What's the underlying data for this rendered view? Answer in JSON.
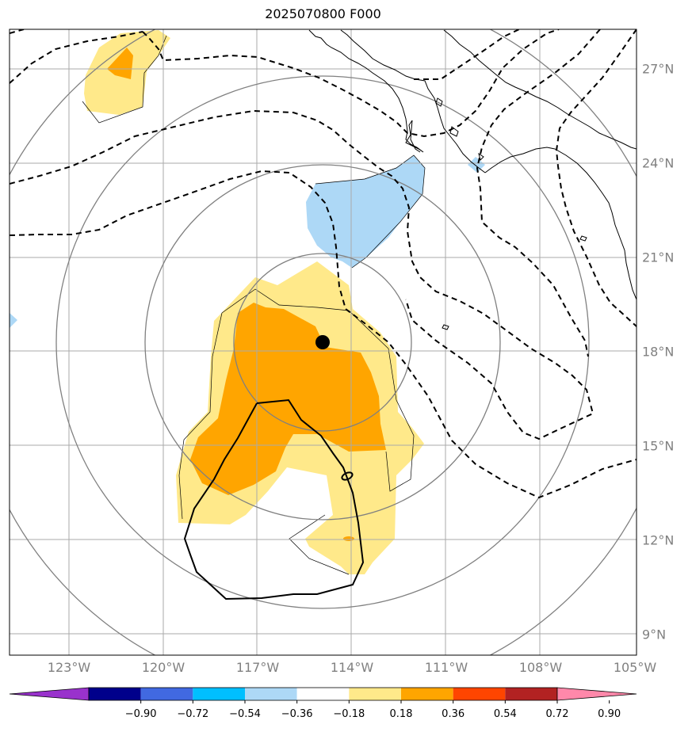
{
  "title": "2025070800 F000",
  "map": {
    "center_marker": {
      "lon": -114.9,
      "lat": 18.3
    },
    "lon_ticks": [
      {
        "value": -123,
        "label": "123°W"
      },
      {
        "value": -120,
        "label": "120°W"
      },
      {
        "value": -117,
        "label": "117°W"
      },
      {
        "value": -114,
        "label": "114°W"
      },
      {
        "value": -111,
        "label": "111°W"
      },
      {
        "value": -108,
        "label": "108°W"
      },
      {
        "value": -105,
        "label": "105°W"
      }
    ],
    "lat_ticks": [
      {
        "value": 27,
        "label": "27°N"
      },
      {
        "value": 24,
        "label": "24°N"
      },
      {
        "value": 21,
        "label": "21°N"
      },
      {
        "value": 18,
        "label": "18°N"
      },
      {
        "value": 15,
        "label": "15°N"
      },
      {
        "value": 12,
        "label": "12°N"
      },
      {
        "value": 9,
        "label": "9°N"
      }
    ],
    "gridline_color": "#aaaaaa",
    "range_ring_color": "#808080"
  },
  "colorbar": {
    "ticks": [
      "−0.90",
      "−0.72",
      "−0.54",
      "−0.36",
      "−0.18",
      "0.18",
      "0.36",
      "0.54",
      "0.72",
      "0.90"
    ],
    "colors": [
      "#9932cc",
      "#00008b",
      "#4169e1",
      "#00bfff",
      "#add8f6",
      "#ffffff",
      "#ffe98a",
      "#ffa500",
      "#ff4500",
      "#b22222",
      "#ff88aa"
    ]
  }
}
